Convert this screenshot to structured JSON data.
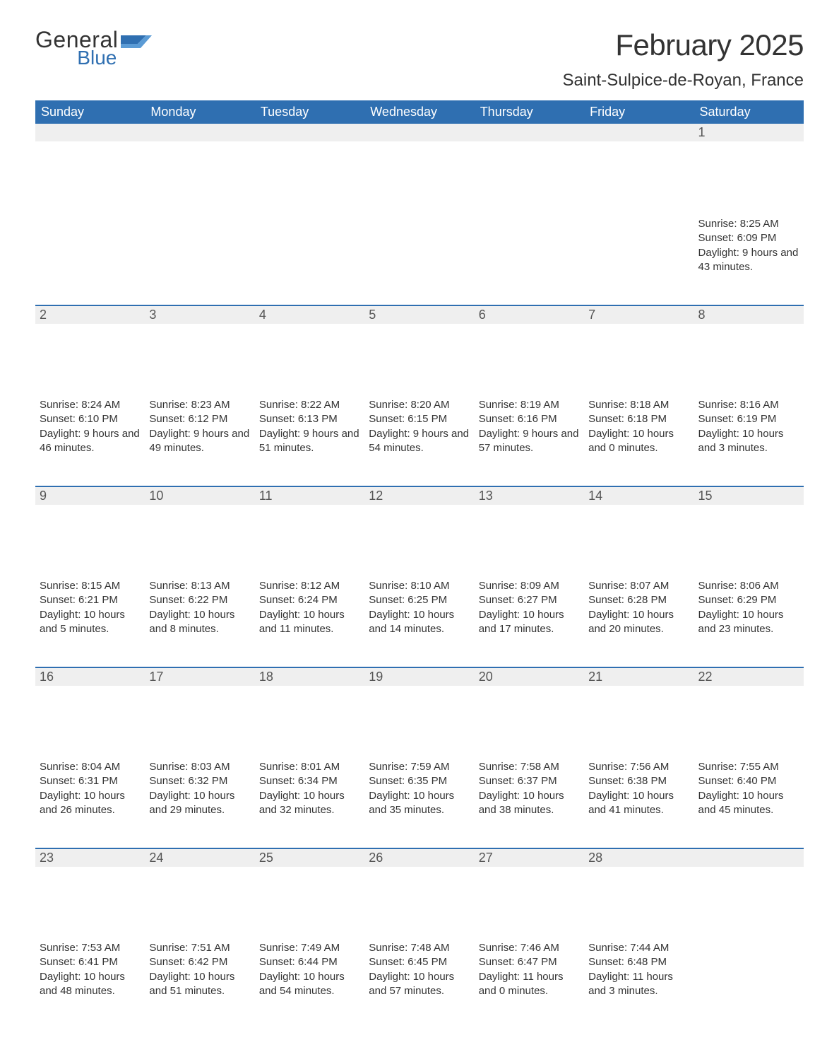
{
  "brand": {
    "part1": "General",
    "part2": "Blue"
  },
  "title": "February 2025",
  "location": "Saint-Sulpice-de-Royan, France",
  "colors": {
    "header_bg": "#2f6fb1",
    "header_text": "#ffffff",
    "daynum_bg": "#efefef",
    "rule": "#2f6fb1",
    "text": "#333333"
  },
  "day_headers": [
    "Sunday",
    "Monday",
    "Tuesday",
    "Wednesday",
    "Thursday",
    "Friday",
    "Saturday"
  ],
  "weeks": [
    [
      {
        "n": "",
        "sunrise": "",
        "sunset": "",
        "daylight": ""
      },
      {
        "n": "",
        "sunrise": "",
        "sunset": "",
        "daylight": ""
      },
      {
        "n": "",
        "sunrise": "",
        "sunset": "",
        "daylight": ""
      },
      {
        "n": "",
        "sunrise": "",
        "sunset": "",
        "daylight": ""
      },
      {
        "n": "",
        "sunrise": "",
        "sunset": "",
        "daylight": ""
      },
      {
        "n": "",
        "sunrise": "",
        "sunset": "",
        "daylight": ""
      },
      {
        "n": "1",
        "sunrise": "Sunrise: 8:25 AM",
        "sunset": "Sunset: 6:09 PM",
        "daylight": "Daylight: 9 hours and 43 minutes."
      }
    ],
    [
      {
        "n": "2",
        "sunrise": "Sunrise: 8:24 AM",
        "sunset": "Sunset: 6:10 PM",
        "daylight": "Daylight: 9 hours and 46 minutes."
      },
      {
        "n": "3",
        "sunrise": "Sunrise: 8:23 AM",
        "sunset": "Sunset: 6:12 PM",
        "daylight": "Daylight: 9 hours and 49 minutes."
      },
      {
        "n": "4",
        "sunrise": "Sunrise: 8:22 AM",
        "sunset": "Sunset: 6:13 PM",
        "daylight": "Daylight: 9 hours and 51 minutes."
      },
      {
        "n": "5",
        "sunrise": "Sunrise: 8:20 AM",
        "sunset": "Sunset: 6:15 PM",
        "daylight": "Daylight: 9 hours and 54 minutes."
      },
      {
        "n": "6",
        "sunrise": "Sunrise: 8:19 AM",
        "sunset": "Sunset: 6:16 PM",
        "daylight": "Daylight: 9 hours and 57 minutes."
      },
      {
        "n": "7",
        "sunrise": "Sunrise: 8:18 AM",
        "sunset": "Sunset: 6:18 PM",
        "daylight": "Daylight: 10 hours and 0 minutes."
      },
      {
        "n": "8",
        "sunrise": "Sunrise: 8:16 AM",
        "sunset": "Sunset: 6:19 PM",
        "daylight": "Daylight: 10 hours and 3 minutes."
      }
    ],
    [
      {
        "n": "9",
        "sunrise": "Sunrise: 8:15 AM",
        "sunset": "Sunset: 6:21 PM",
        "daylight": "Daylight: 10 hours and 5 minutes."
      },
      {
        "n": "10",
        "sunrise": "Sunrise: 8:13 AM",
        "sunset": "Sunset: 6:22 PM",
        "daylight": "Daylight: 10 hours and 8 minutes."
      },
      {
        "n": "11",
        "sunrise": "Sunrise: 8:12 AM",
        "sunset": "Sunset: 6:24 PM",
        "daylight": "Daylight: 10 hours and 11 minutes."
      },
      {
        "n": "12",
        "sunrise": "Sunrise: 8:10 AM",
        "sunset": "Sunset: 6:25 PM",
        "daylight": "Daylight: 10 hours and 14 minutes."
      },
      {
        "n": "13",
        "sunrise": "Sunrise: 8:09 AM",
        "sunset": "Sunset: 6:27 PM",
        "daylight": "Daylight: 10 hours and 17 minutes."
      },
      {
        "n": "14",
        "sunrise": "Sunrise: 8:07 AM",
        "sunset": "Sunset: 6:28 PM",
        "daylight": "Daylight: 10 hours and 20 minutes."
      },
      {
        "n": "15",
        "sunrise": "Sunrise: 8:06 AM",
        "sunset": "Sunset: 6:29 PM",
        "daylight": "Daylight: 10 hours and 23 minutes."
      }
    ],
    [
      {
        "n": "16",
        "sunrise": "Sunrise: 8:04 AM",
        "sunset": "Sunset: 6:31 PM",
        "daylight": "Daylight: 10 hours and 26 minutes."
      },
      {
        "n": "17",
        "sunrise": "Sunrise: 8:03 AM",
        "sunset": "Sunset: 6:32 PM",
        "daylight": "Daylight: 10 hours and 29 minutes."
      },
      {
        "n": "18",
        "sunrise": "Sunrise: 8:01 AM",
        "sunset": "Sunset: 6:34 PM",
        "daylight": "Daylight: 10 hours and 32 minutes."
      },
      {
        "n": "19",
        "sunrise": "Sunrise: 7:59 AM",
        "sunset": "Sunset: 6:35 PM",
        "daylight": "Daylight: 10 hours and 35 minutes."
      },
      {
        "n": "20",
        "sunrise": "Sunrise: 7:58 AM",
        "sunset": "Sunset: 6:37 PM",
        "daylight": "Daylight: 10 hours and 38 minutes."
      },
      {
        "n": "21",
        "sunrise": "Sunrise: 7:56 AM",
        "sunset": "Sunset: 6:38 PM",
        "daylight": "Daylight: 10 hours and 41 minutes."
      },
      {
        "n": "22",
        "sunrise": "Sunrise: 7:55 AM",
        "sunset": "Sunset: 6:40 PM",
        "daylight": "Daylight: 10 hours and 45 minutes."
      }
    ],
    [
      {
        "n": "23",
        "sunrise": "Sunrise: 7:53 AM",
        "sunset": "Sunset: 6:41 PM",
        "daylight": "Daylight: 10 hours and 48 minutes."
      },
      {
        "n": "24",
        "sunrise": "Sunrise: 7:51 AM",
        "sunset": "Sunset: 6:42 PM",
        "daylight": "Daylight: 10 hours and 51 minutes."
      },
      {
        "n": "25",
        "sunrise": "Sunrise: 7:49 AM",
        "sunset": "Sunset: 6:44 PM",
        "daylight": "Daylight: 10 hours and 54 minutes."
      },
      {
        "n": "26",
        "sunrise": "Sunrise: 7:48 AM",
        "sunset": "Sunset: 6:45 PM",
        "daylight": "Daylight: 10 hours and 57 minutes."
      },
      {
        "n": "27",
        "sunrise": "Sunrise: 7:46 AM",
        "sunset": "Sunset: 6:47 PM",
        "daylight": "Daylight: 11 hours and 0 minutes."
      },
      {
        "n": "28",
        "sunrise": "Sunrise: 7:44 AM",
        "sunset": "Sunset: 6:48 PM",
        "daylight": "Daylight: 11 hours and 3 minutes."
      },
      {
        "n": "",
        "sunrise": "",
        "sunset": "",
        "daylight": ""
      }
    ]
  ]
}
